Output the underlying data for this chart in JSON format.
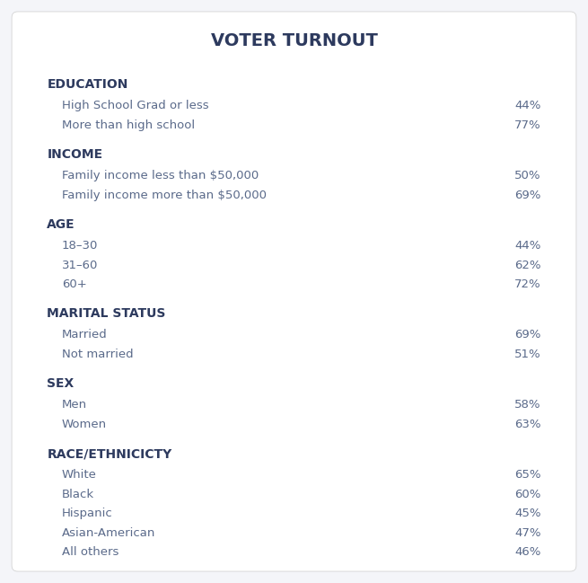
{
  "title": "VOTER TURNOUT",
  "title_color": "#2d3a5e",
  "title_fontsize": 14,
  "background_color": "#f4f5f9",
  "card_color": "#ffffff",
  "header_color": "#2d3a5e",
  "header_fontsize": 10,
  "item_label_color": "#5a6a8a",
  "item_value_color": "#5a6a8a",
  "item_fontsize": 9.5,
  "rows": [
    {
      "type": "header",
      "text": "EDUCATION"
    },
    {
      "type": "item",
      "label": "High School Grad or less",
      "value": "44%"
    },
    {
      "type": "item",
      "label": "More than high school",
      "value": "77%"
    },
    {
      "type": "header",
      "text": "INCOME"
    },
    {
      "type": "item",
      "label": "Family income less than $50,000",
      "value": "50%"
    },
    {
      "type": "item",
      "label": "Family income more than $50,000",
      "value": "69%"
    },
    {
      "type": "header",
      "text": "AGE"
    },
    {
      "type": "item",
      "label": "18–30",
      "value": "44%"
    },
    {
      "type": "item",
      "label": "31–60",
      "value": "62%"
    },
    {
      "type": "item",
      "label": "60+",
      "value": "72%"
    },
    {
      "type": "header",
      "text": "MARITAL STATUS"
    },
    {
      "type": "item",
      "label": "Married",
      "value": "69%"
    },
    {
      "type": "item",
      "label": "Not married",
      "value": "51%"
    },
    {
      "type": "header",
      "text": "SEX"
    },
    {
      "type": "item",
      "label": "Men",
      "value": "58%"
    },
    {
      "type": "item",
      "label": "Women",
      "value": "63%"
    },
    {
      "type": "header",
      "text": "RACE/ETHNICICTY"
    },
    {
      "type": "item",
      "label": "White",
      "value": "65%"
    },
    {
      "type": "item",
      "label": "Black",
      "value": "60%"
    },
    {
      "type": "item",
      "label": "Hispanic",
      "value": "45%"
    },
    {
      "type": "item",
      "label": "Asian-American",
      "value": "47%"
    },
    {
      "type": "item",
      "label": "All others",
      "value": "46%"
    }
  ]
}
